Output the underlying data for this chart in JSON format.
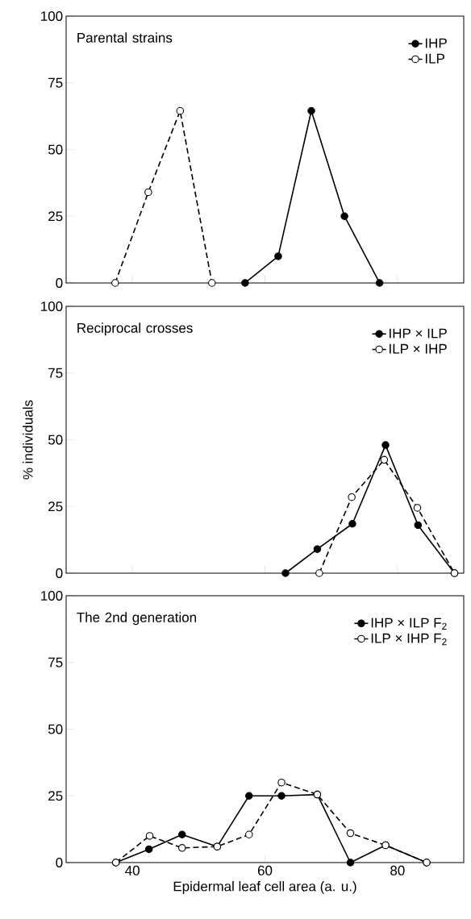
{
  "chart_data": [
    {
      "type": "line",
      "annotations": [
        "Parental strains"
      ],
      "xlim": [
        30,
        90
      ],
      "xticks": [
        40,
        60,
        80
      ],
      "ylim": [
        0,
        100
      ],
      "yticks": [
        0,
        25,
        50,
        75,
        100
      ],
      "tick_labels": "y",
      "legend": "top right",
      "marker": "circle",
      "series": [
        {
          "name": "IHP",
          "color": "#000000",
          "line_style": "solid",
          "x": [
            57,
            62,
            67,
            72,
            77.3
          ],
          "values": [
            0,
            10,
            64.5,
            25,
            0
          ]
        },
        {
          "name": "ILP",
          "color": "#000000",
          "line_style": "dashed",
          "x": [
            37.4,
            42.4,
            47.2,
            52
          ],
          "values": [
            0,
            34,
            64.5,
            0
          ]
        }
      ]
    },
    {
      "type": "line",
      "annotations": [
        "Reciprocal crosses"
      ],
      "ylabel": "% individuals",
      "xlim": [
        30,
        90
      ],
      "xticks": [
        40,
        60,
        80
      ],
      "ylim": [
        0,
        100
      ],
      "yticks": [
        0,
        25,
        50,
        75,
        100
      ],
      "tick_labels": "y",
      "legend": "top right",
      "marker": "circle",
      "series": [
        {
          "name": "IHP × ILP",
          "color": "#000000",
          "line_style": "solid",
          "x": [
            63.1,
            67.9,
            73.2,
            78.2,
            83.1,
            88.6
          ],
          "values": [
            0,
            9,
            18.5,
            48,
            18,
            0
          ]
        },
        {
          "name": "ILP × IHP",
          "color": "#000000",
          "line_style": "dashed",
          "x": [
            68.2,
            73.1,
            78,
            83,
            88.6
          ],
          "values": [
            0,
            28.5,
            42.5,
            24.5,
            0
          ]
        }
      ]
    },
    {
      "type": "line",
      "annotations": [
        "The 2nd generation"
      ],
      "xlabel": "Epidermal leaf cell area (a. u.)",
      "xlim": [
        30,
        90
      ],
      "xticks": [
        40,
        60,
        80
      ],
      "ylim": [
        0,
        100
      ],
      "yticks": [
        0,
        25,
        50,
        75,
        100
      ],
      "legend": "top right",
      "marker": "circle",
      "series": [
        {
          "name": "IHP × ILP F$_{2}$",
          "color": "#000000",
          "line_style": "solid",
          "x": [
            37.5,
            42.5,
            47.5,
            52.8,
            57.6,
            62.5,
            67.9,
            72.9,
            78.2,
            84.4
          ],
          "values": [
            0,
            5,
            10.5,
            6,
            25,
            25,
            25.5,
            0,
            6.5,
            0
          ]
        },
        {
          "name": "ILP × IHP F$_{2}$",
          "color": "#000000",
          "line_style": "dashed",
          "x": [
            37.5,
            42.6,
            47.5,
            52.8,
            57.6,
            62.5,
            67.9,
            72.9,
            78.2,
            84.4
          ],
          "values": [
            0,
            10,
            5.5,
            6,
            10.5,
            30,
            25.5,
            11,
            6.5,
            0
          ]
        }
      ]
    }
  ]
}
